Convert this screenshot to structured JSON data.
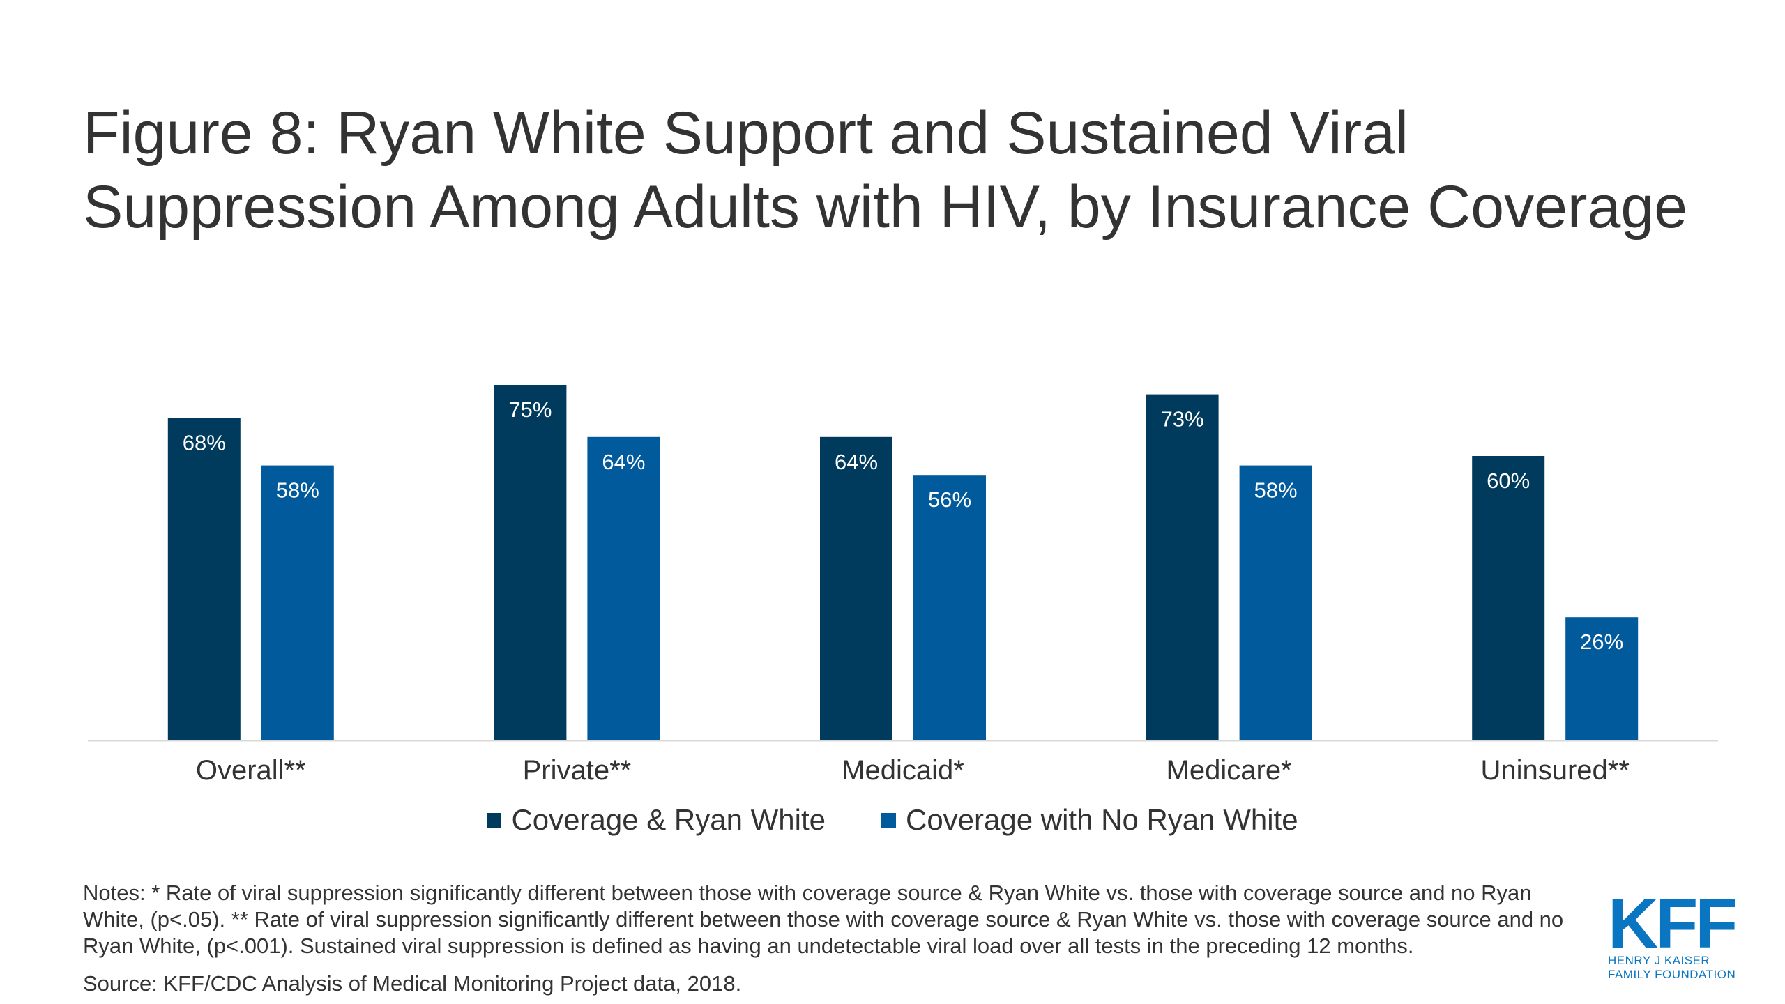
{
  "title": "Figure 8: Ryan White Support and Sustained Viral Suppression Among Adults with HIV, by Insurance Coverage",
  "colors": {
    "series1": "#003a5c",
    "series2": "#005a9c",
    "axis": "#d9d9d9",
    "logo": "#0a76c1"
  },
  "chart_data": {
    "type": "bar",
    "categories": [
      "Overall**",
      "Private**",
      "Medicaid*",
      "Medicare*",
      "Uninsured**"
    ],
    "series": [
      {
        "name": "Coverage & Ryan White",
        "values": [
          68,
          75,
          64,
          73,
          60
        ],
        "labels": [
          "68%",
          "75%",
          "64%",
          "73%",
          "60%"
        ]
      },
      {
        "name": "Coverage with No Ryan White",
        "values": [
          58,
          64,
          56,
          58,
          26
        ],
        "labels": [
          "58%",
          "64%",
          "56%",
          "58%",
          "26%"
        ]
      }
    ],
    "ylim": [
      0,
      100
    ],
    "grid": false,
    "legend": "bottom"
  },
  "legend": {
    "item1": "Coverage & Ryan White",
    "item2": "Coverage with No Ryan White"
  },
  "notes": "Notes: * Rate of viral suppression significantly different between those with coverage source & Ryan White vs. those with coverage source and no Ryan White, (p<.05). ** Rate of viral suppression significantly different between those with coverage source & Ryan White vs. those with coverage source and no Ryan White, (p<.001). Sustained viral suppression is defined as having an undetectable viral load over all tests in the preceding 12 months.",
  "source": "Source: KFF/CDC Analysis of Medical Monitoring Project data, 2018.",
  "logo": {
    "mark": "KFF",
    "line1": "HENRY J KAISER",
    "line2": "FAMILY FOUNDATION"
  }
}
